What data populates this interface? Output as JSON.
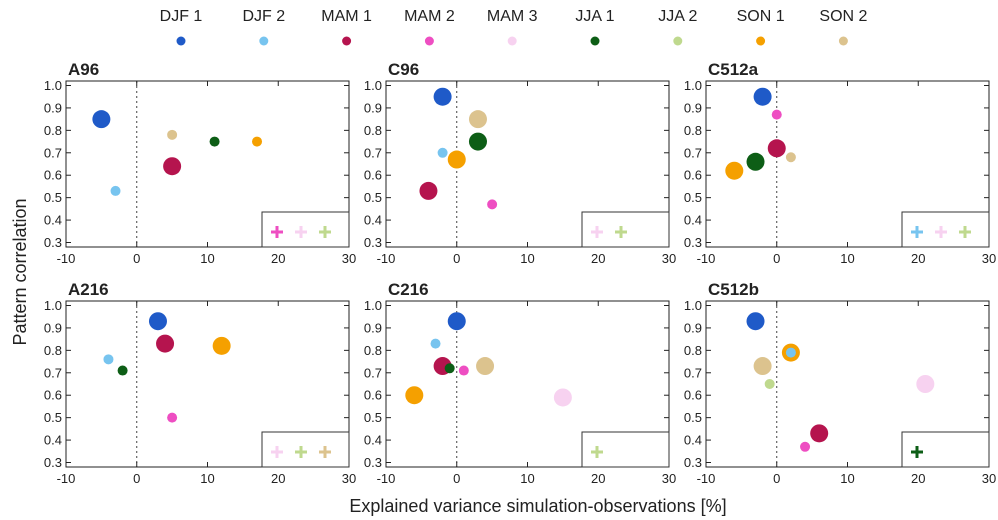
{
  "figure": {
    "ylabel": "Pattern correlation",
    "xlabel": "Explained variance simulation-observations [%]",
    "xlim": [
      -10,
      30
    ],
    "ylim": [
      0.28,
      1.02
    ],
    "xticks": [
      -10,
      0,
      10,
      20,
      30
    ],
    "yticks": [
      0.3,
      0.4,
      0.5,
      0.6,
      0.7,
      0.8,
      0.9,
      1.0
    ]
  },
  "legend": [
    {
      "key": "djf1",
      "label": "DJF 1",
      "color": "#1f5ac8"
    },
    {
      "key": "djf2",
      "label": "DJF 2",
      "color": "#77c4ef"
    },
    {
      "key": "mam1",
      "label": "MAM 1",
      "color": "#b5144e"
    },
    {
      "key": "mam2",
      "label": "MAM 2",
      "color": "#ee4ec2"
    },
    {
      "key": "mam3",
      "label": "MAM 3",
      "color": "#f7d2f0"
    },
    {
      "key": "jja1",
      "label": "JJA 1",
      "color": "#0d5e16"
    },
    {
      "key": "jja2",
      "label": "JJA 2",
      "color": "#bfd98e"
    },
    {
      "key": "son1",
      "label": "SON 1",
      "color": "#f5a000"
    },
    {
      "key": "son2",
      "label": "SON 2",
      "color": "#dcc38e"
    }
  ],
  "chart_data": [
    {
      "type": "scatter",
      "title": "A96",
      "points": [
        {
          "series": "djf1",
          "x": -5,
          "y": 0.85,
          "size": "large"
        },
        {
          "series": "djf2",
          "x": -3,
          "y": 0.53,
          "size": "small"
        },
        {
          "series": "mam1",
          "x": 5,
          "y": 0.64,
          "size": "large"
        },
        {
          "series": "son2",
          "x": 5,
          "y": 0.78,
          "size": "small"
        },
        {
          "series": "jja1",
          "x": 11,
          "y": 0.75,
          "size": "small"
        },
        {
          "series": "son1",
          "x": 17,
          "y": 0.75,
          "size": "small"
        }
      ],
      "outside_range": [
        "mam2",
        "mam3",
        "jja2"
      ]
    },
    {
      "type": "scatter",
      "title": "C96",
      "points": [
        {
          "series": "djf1",
          "x": -2,
          "y": 0.95,
          "size": "large"
        },
        {
          "series": "djf2",
          "x": -2,
          "y": 0.7,
          "size": "small"
        },
        {
          "series": "son2",
          "x": 3,
          "y": 0.85,
          "size": "large"
        },
        {
          "series": "jja1",
          "x": 3,
          "y": 0.75,
          "size": "large"
        },
        {
          "series": "son1",
          "x": 0,
          "y": 0.67,
          "size": "large"
        },
        {
          "series": "mam1",
          "x": -4,
          "y": 0.53,
          "size": "large"
        },
        {
          "series": "mam2",
          "x": 5,
          "y": 0.47,
          "size": "small"
        }
      ],
      "outside_range": [
        "mam3",
        "jja2"
      ]
    },
    {
      "type": "scatter",
      "title": "C512a",
      "points": [
        {
          "series": "djf1",
          "x": -2,
          "y": 0.95,
          "size": "large"
        },
        {
          "series": "mam2",
          "x": 0,
          "y": 0.87,
          "size": "small"
        },
        {
          "series": "mam1",
          "x": 0,
          "y": 0.72,
          "size": "large"
        },
        {
          "series": "jja1",
          "x": -3,
          "y": 0.66,
          "size": "large"
        },
        {
          "series": "son2",
          "x": 2,
          "y": 0.68,
          "size": "small"
        },
        {
          "series": "son1",
          "x": -6,
          "y": 0.62,
          "size": "large"
        }
      ],
      "outside_range": [
        "djf2",
        "mam3",
        "jja2"
      ]
    },
    {
      "type": "scatter",
      "title": "A216",
      "points": [
        {
          "series": "djf1",
          "x": 3,
          "y": 0.93,
          "size": "large"
        },
        {
          "series": "mam1",
          "x": 4,
          "y": 0.83,
          "size": "large"
        },
        {
          "series": "son1",
          "x": 12,
          "y": 0.82,
          "size": "large"
        },
        {
          "series": "djf2",
          "x": -4,
          "y": 0.76,
          "size": "small"
        },
        {
          "series": "jja1",
          "x": -2,
          "y": 0.71,
          "size": "small"
        },
        {
          "series": "mam2",
          "x": 5,
          "y": 0.5,
          "size": "small"
        }
      ],
      "outside_range": [
        "mam3",
        "jja2",
        "son2"
      ]
    },
    {
      "type": "scatter",
      "title": "C216",
      "points": [
        {
          "series": "djf1",
          "x": 0,
          "y": 0.93,
          "size": "large"
        },
        {
          "series": "djf2",
          "x": -3,
          "y": 0.83,
          "size": "small"
        },
        {
          "series": "mam1",
          "x": -2,
          "y": 0.73,
          "size": "large"
        },
        {
          "series": "jja1",
          "x": -1,
          "y": 0.72,
          "size": "small"
        },
        {
          "series": "mam2",
          "x": 1,
          "y": 0.71,
          "size": "small"
        },
        {
          "series": "son2",
          "x": 4,
          "y": 0.73,
          "size": "large"
        },
        {
          "series": "son1",
          "x": -6,
          "y": 0.6,
          "size": "large"
        },
        {
          "series": "mam3",
          "x": 15,
          "y": 0.59,
          "size": "large"
        }
      ],
      "outside_range": [
        "jja2"
      ]
    },
    {
      "type": "scatter",
      "title": "C512b",
      "points": [
        {
          "series": "djf1",
          "x": -3,
          "y": 0.93,
          "size": "large"
        },
        {
          "series": "son1",
          "x": 2,
          "y": 0.79,
          "size": "large"
        },
        {
          "series": "djf2",
          "x": 2,
          "y": 0.79,
          "size": "small"
        },
        {
          "series": "son2",
          "x": -2,
          "y": 0.73,
          "size": "large"
        },
        {
          "series": "jja2",
          "x": -1,
          "y": 0.65,
          "size": "small"
        },
        {
          "series": "mam3",
          "x": 21,
          "y": 0.65,
          "size": "large"
        },
        {
          "series": "mam1",
          "x": 6,
          "y": 0.43,
          "size": "large"
        },
        {
          "series": "mam2",
          "x": 4,
          "y": 0.37,
          "size": "small"
        }
      ],
      "outside_range": [
        "jja1"
      ]
    }
  ]
}
